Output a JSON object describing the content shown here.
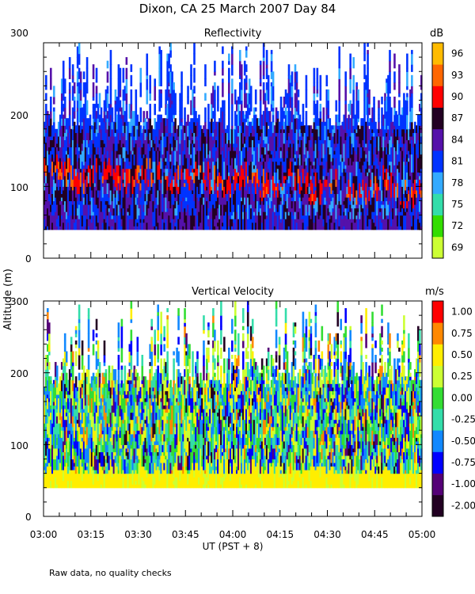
{
  "figure": {
    "title": "Dixon, CA 25 March 2007  Day  84",
    "y_axis_label": "Altitude (m)",
    "x_axis_label": "UT  (PST + 8)",
    "footnote": "Raw data, no quality checks"
  },
  "chart_data": [
    {
      "type": "heatmap",
      "title": "Reflectivity",
      "x_ticks": [
        "03:00",
        "03:15",
        "03:30",
        "03:45",
        "04:00",
        "04:15",
        "04:30",
        "04:45",
        "05:00"
      ],
      "x_range": [
        "03:00",
        "05:00"
      ],
      "y_ticks": [
        0,
        100,
        200,
        300
      ],
      "ylim": [
        0,
        300
      ],
      "colorbar": {
        "unit": "dB",
        "labels": [
          "69",
          "72",
          "75",
          "78",
          "81",
          "84",
          "87",
          "90",
          "93",
          "96"
        ],
        "colors": [
          "#ccff33",
          "#33dd00",
          "#33ddaa",
          "#33aaff",
          "#0033ff",
          "#5511aa",
          "#220022",
          "#ff0000",
          "#ff6600",
          "#ffbb00"
        ]
      },
      "data_bottom_m": 40,
      "main_top_m": 200
    },
    {
      "type": "heatmap",
      "title": "Vertical Velocity",
      "x_ticks": [
        "03:00",
        "03:15",
        "03:30",
        "03:45",
        "04:00",
        "04:15",
        "04:30",
        "04:45",
        "05:00"
      ],
      "x_range": [
        "03:00",
        "05:00"
      ],
      "y_ticks": [
        0,
        100,
        200,
        300
      ],
      "ylim": [
        0,
        300
      ],
      "colorbar": {
        "unit": "m/s",
        "labels": [
          "-2.00",
          "-1.00",
          "-0.75",
          "-0.50",
          "-0.25",
          "0.00",
          "0.25",
          "0.50",
          "0.75",
          "1.00"
        ],
        "colors": [
          "#220022",
          "#550077",
          "#0000ff",
          "#1188ff",
          "#33ddaa",
          "#33dd33",
          "#ccff33",
          "#ffee00",
          "#ff8800",
          "#ff0000"
        ]
      },
      "data_bottom_m": 40,
      "main_top_m": 200
    }
  ]
}
